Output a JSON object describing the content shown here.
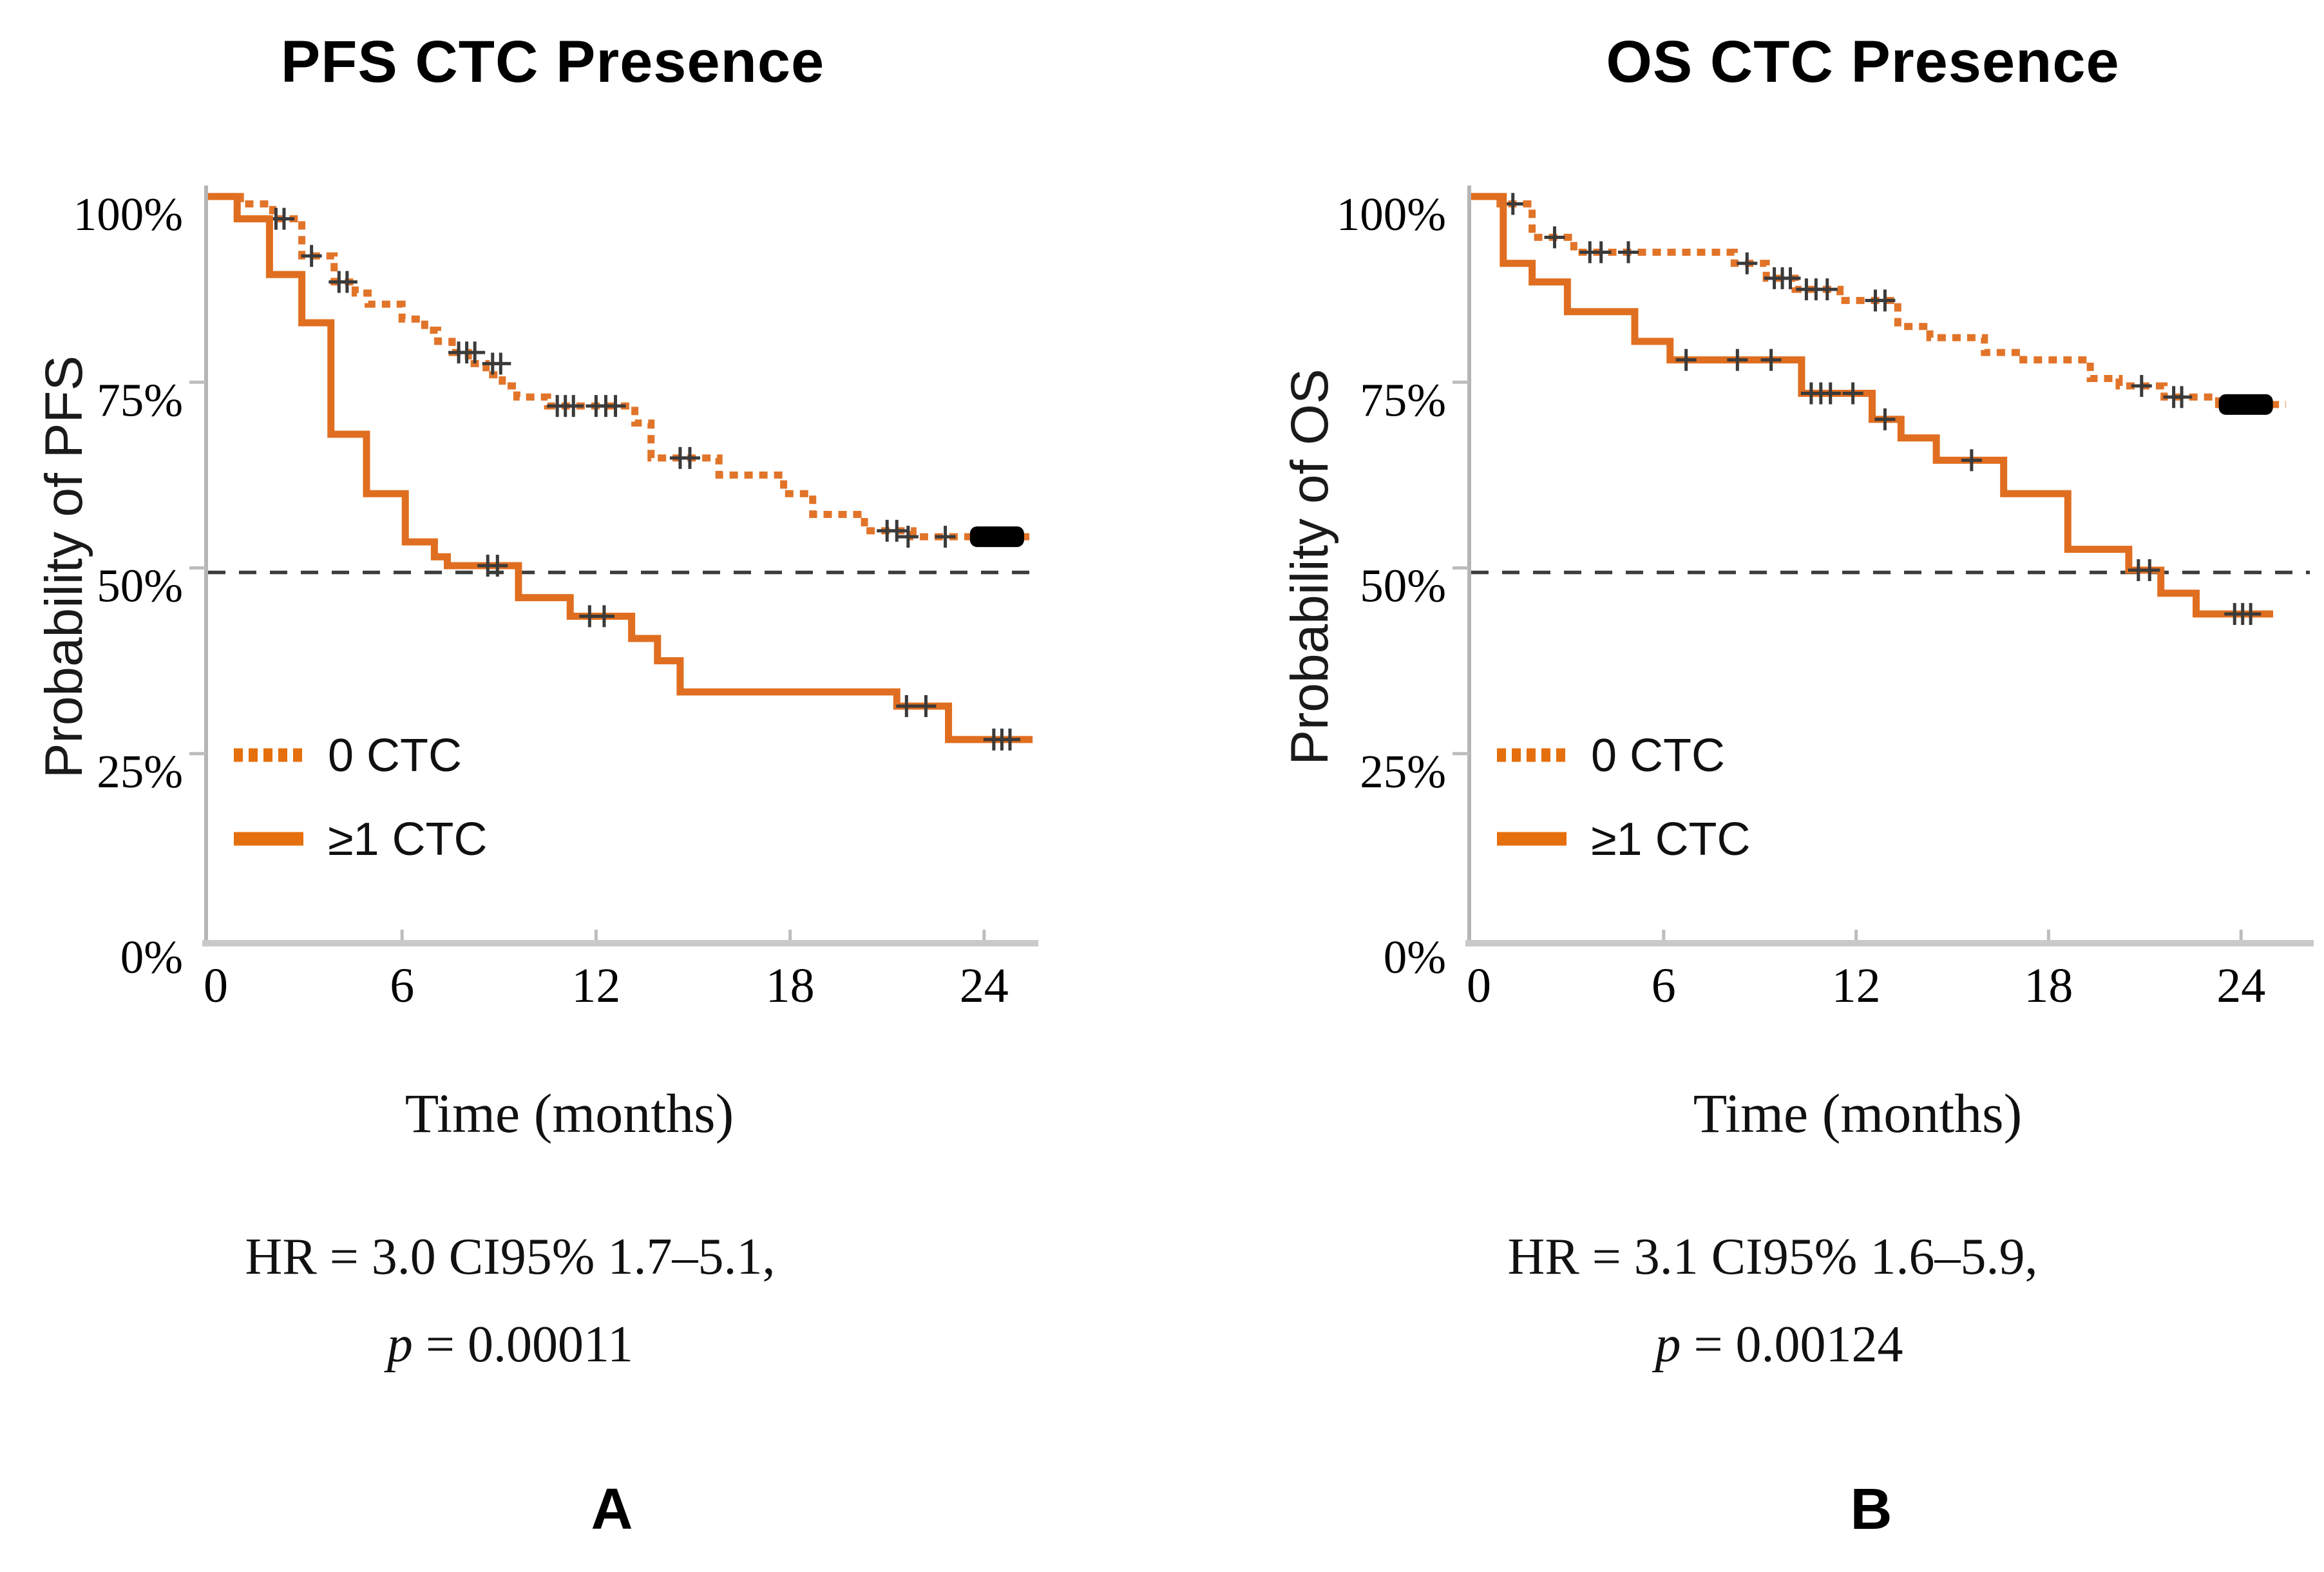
{
  "figure": {
    "background": "#ffffff",
    "kind": "kaplan-meier-survival-figure",
    "n_panels": 2
  },
  "colors": {
    "curve_orange": "#E06E20",
    "legend_orange": "#E56F0C",
    "censor_mark": "#3a3a3a",
    "median_dash": "#3d3d3d",
    "axis_line_x": "#c9c9c9",
    "axis_line_y": "#b5b5b5",
    "tick_mark": "#bdbdbd",
    "end_block": "#000000",
    "text": "#000000"
  },
  "chart_data": [
    {
      "type": "line",
      "subtype": "kaplan-meier-step",
      "title": "PFS CTC Presence",
      "ylabel": "Probability of PFS",
      "xlabel": "Time (months)",
      "panel_label": "A",
      "x_tick_labels": [
        "0",
        "6",
        "12",
        "18",
        "24"
      ],
      "x_tick_values": [
        0,
        6,
        12,
        18,
        24
      ],
      "y_tick_labels": [
        "100%",
        "75%",
        "50%",
        "25%",
        "0%"
      ],
      "y_tick_values": [
        100,
        75,
        50,
        25,
        0
      ],
      "xlim": [
        0,
        25.8
      ],
      "ylim": [
        0,
        100
      ],
      "grid": false,
      "median_line_y": 50,
      "legend_position": "inside-lower-left",
      "legend": [
        {
          "label": "0 CTC",
          "style": "dotted"
        },
        {
          "label": "≥1 CTC",
          "style": "solid"
        }
      ],
      "stats": {
        "line1": "HR = 3.0 CI95% 1.7–5.1,",
        "p_label": "p",
        "p_value": " = 0.00011"
      },
      "series": [
        {
          "name": "0 CTC",
          "style": "dotted",
          "steps": [
            [
              0,
              100
            ],
            [
              1.0,
              99
            ],
            [
              2.0,
              97
            ],
            [
              2.9,
              92
            ],
            [
              3.9,
              88.5
            ],
            [
              4.55,
              87
            ],
            [
              4.95,
              85.5
            ],
            [
              6.0,
              83.5
            ],
            [
              6.7,
              82
            ],
            [
              7.1,
              80.5
            ],
            [
              7.55,
              79
            ],
            [
              8.05,
              77.5
            ],
            [
              8.6,
              76
            ],
            [
              9.1,
              74.5
            ],
            [
              9.55,
              73
            ],
            [
              10.5,
              71.8
            ],
            [
              13.2,
              69.5
            ],
            [
              13.7,
              64.8
            ],
            [
              15.8,
              62.5
            ],
            [
              17.8,
              60
            ],
            [
              18.7,
              57.2
            ],
            [
              20.3,
              55
            ],
            [
              21.8,
              54.2
            ]
          ],
          "end_x": 25.4,
          "censors": [
            [
              2.1,
              97
            ],
            [
              2.35,
              97
            ],
            [
              3.2,
              92
            ],
            [
              4.05,
              88.5
            ],
            [
              4.3,
              88.5
            ],
            [
              7.75,
              79
            ],
            [
              8.0,
              79
            ],
            [
              8.25,
              79
            ],
            [
              8.8,
              77.5
            ],
            [
              9.05,
              77.5
            ],
            [
              10.8,
              71.8
            ],
            [
              11.05,
              71.8
            ],
            [
              11.3,
              71.8
            ],
            [
              12.0,
              71.8
            ],
            [
              12.3,
              71.8
            ],
            [
              12.6,
              71.8
            ],
            [
              14.6,
              64.8
            ],
            [
              14.9,
              64.8
            ],
            [
              21.0,
              55
            ],
            [
              21.3,
              55
            ],
            [
              21.65,
              54.2
            ],
            [
              22.8,
              54.2
            ]
          ],
          "end_block": {
            "x_center": 24.4,
            "y": 54.2
          }
        },
        {
          "name": "≥1 CTC",
          "style": "solid",
          "steps": [
            [
              0,
              100
            ],
            [
              0.9,
              97
            ],
            [
              1.9,
              89.5
            ],
            [
              2.9,
              83
            ],
            [
              3.8,
              68
            ],
            [
              4.9,
              60
            ],
            [
              6.1,
              53.5
            ],
            [
              7.0,
              51.5
            ],
            [
              7.4,
              50.3
            ],
            [
              9.6,
              46
            ],
            [
              11.2,
              43.5
            ],
            [
              13.1,
              40.5
            ],
            [
              13.9,
              37.5
            ],
            [
              14.6,
              33.3
            ],
            [
              21.3,
              31.4
            ],
            [
              22.9,
              26.9
            ]
          ],
          "end_x": 25.5,
          "censors": [
            [
              8.65,
              50.3
            ],
            [
              8.95,
              50.3
            ],
            [
              11.8,
              43.5
            ],
            [
              12.25,
              43.5
            ],
            [
              21.6,
              31.4
            ],
            [
              22.2,
              31.4
            ],
            [
              24.3,
              26.9
            ],
            [
              24.55,
              26.9
            ],
            [
              24.8,
              26.9
            ]
          ],
          "end_block": null
        }
      ]
    },
    {
      "type": "line",
      "subtype": "kaplan-meier-step",
      "title": "OS CTC Presence",
      "ylabel": "Probability of OS",
      "xlabel": "Time (months)",
      "panel_label": "B",
      "x_tick_labels": [
        "0",
        "6",
        "12",
        "18",
        "24"
      ],
      "x_tick_values": [
        0,
        6,
        12,
        18,
        24
      ],
      "y_tick_labels": [
        "100%",
        "75%",
        "50%",
        "25%",
        "0%"
      ],
      "y_tick_values": [
        100,
        75,
        50,
        25,
        0
      ],
      "xlim": [
        0,
        25.8
      ],
      "ylim": [
        0,
        100
      ],
      "grid": false,
      "median_line_y": 50,
      "legend_position": "inside-lower-left",
      "legend": [
        {
          "label": "0 CTC",
          "style": "dotted"
        },
        {
          "label": "≥1 CTC",
          "style": "solid"
        }
      ],
      "stats": {
        "line1": "HR = 3.1 CI95% 1.6–5.9,",
        "p_label": "p",
        "p_value": " = 0.00124"
      },
      "series": [
        {
          "name": "0 CTC",
          "style": "dotted",
          "steps": [
            [
              0,
              100
            ],
            [
              0.9,
              99
            ],
            [
              1.9,
              94.5
            ],
            [
              3.2,
              92.5
            ],
            [
              8.2,
              91
            ],
            [
              9.2,
              89
            ],
            [
              10.1,
              87.5
            ],
            [
              11.5,
              86
            ],
            [
              13.3,
              82.5
            ],
            [
              14.3,
              81
            ],
            [
              16.0,
              79
            ],
            [
              17.2,
              78
            ],
            [
              19.3,
              75.5
            ],
            [
              20.2,
              74.5
            ],
            [
              21.6,
              73
            ],
            [
              23.3,
              72
            ]
          ],
          "end_x": 25.4,
          "censors": [
            [
              1.3,
              99
            ],
            [
              2.6,
              94.5
            ],
            [
              3.7,
              92.5
            ],
            [
              4.05,
              92.5
            ],
            [
              4.9,
              92.5
            ],
            [
              8.6,
              91
            ],
            [
              9.45,
              89
            ],
            [
              9.7,
              89
            ],
            [
              9.95,
              89
            ],
            [
              10.45,
              87.5
            ],
            [
              10.75,
              87.5
            ],
            [
              11.1,
              87.5
            ],
            [
              12.6,
              86
            ],
            [
              12.9,
              86
            ],
            [
              20.9,
              74.5
            ],
            [
              21.9,
              73
            ],
            [
              22.15,
              73
            ]
          ],
          "end_block": {
            "x_center": 24.15,
            "y": 72
          }
        },
        {
          "name": "≥1 CTC",
          "style": "solid",
          "steps": [
            [
              0,
              100
            ],
            [
              1.0,
              91
            ],
            [
              1.9,
              88.5
            ],
            [
              3.0,
              84.5
            ],
            [
              5.1,
              80.5
            ],
            [
              6.2,
              78
            ],
            [
              10.3,
              73.5
            ],
            [
              12.5,
              70
            ],
            [
              13.4,
              67.5
            ],
            [
              14.5,
              64.5
            ],
            [
              16.6,
              60
            ],
            [
              18.6,
              52.5
            ],
            [
              20.5,
              49.7
            ],
            [
              21.5,
              46.6
            ],
            [
              22.6,
              43.8
            ]
          ],
          "end_x": 25.0,
          "censors": [
            [
              6.7,
              78
            ],
            [
              8.3,
              78
            ],
            [
              9.35,
              78
            ],
            [
              10.6,
              73.5
            ],
            [
              10.9,
              73.5
            ],
            [
              11.2,
              73.5
            ],
            [
              11.9,
              73.5
            ],
            [
              12.9,
              70
            ],
            [
              15.6,
              64.5
            ],
            [
              20.8,
              49.7
            ],
            [
              21.15,
              49.7
            ],
            [
              23.8,
              43.8
            ],
            [
              24.05,
              43.8
            ],
            [
              24.3,
              43.8
            ]
          ],
          "end_block": null
        }
      ]
    }
  ]
}
